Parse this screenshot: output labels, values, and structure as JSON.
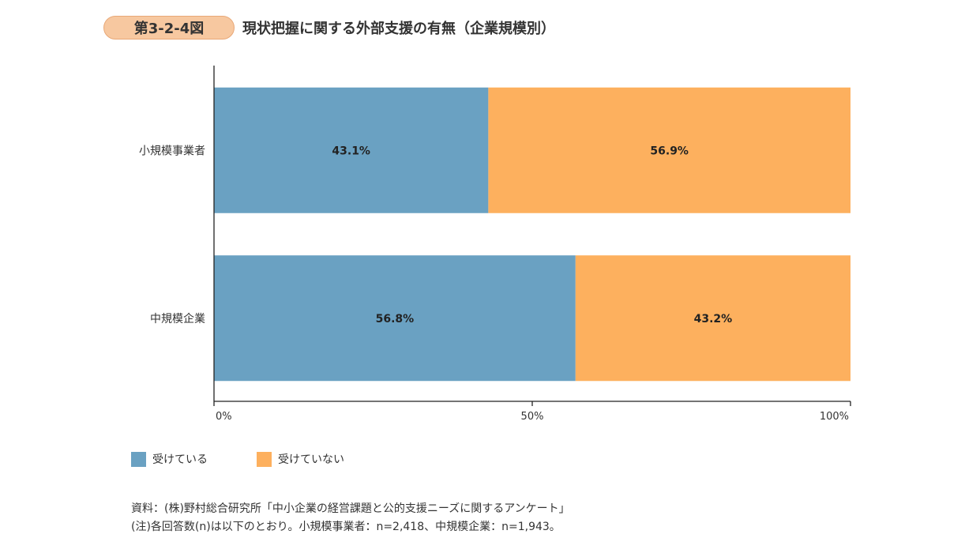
{
  "figure": {
    "number": "第3-2-4図",
    "title": "現状把握に関する外部支援の有無（企業規模別）"
  },
  "chart_data": {
    "type": "bar",
    "orientation": "horizontal",
    "stacked": true,
    "percent_stacked": true,
    "categories": [
      "小規模事業者",
      "中規模企業"
    ],
    "series": [
      {
        "name": "受けている",
        "values": [
          43.1,
          56.8
        ],
        "labels": [
          "43.1%",
          "56.8%"
        ],
        "color": "#6aa1c2"
      },
      {
        "name": "受けていない",
        "values": [
          56.9,
          43.2
        ],
        "labels": [
          "56.9%",
          "43.2%"
        ],
        "color": "#fdb05e"
      }
    ],
    "xlim": [
      0,
      100
    ],
    "xticks": [
      0,
      50,
      100
    ],
    "xtick_labels": [
      "0%",
      "50%",
      "100%"
    ],
    "grid": false,
    "legend_position": "bottom-left"
  },
  "notes": {
    "source": "資料：(株)野村総合研究所「中小企業の経営課題と公的支援ニーズに関するアンケート」",
    "note": "(注)各回答数(n)は以下のとおり。小規模事業者：n=2,418、中規模企業：n=1,943。"
  }
}
